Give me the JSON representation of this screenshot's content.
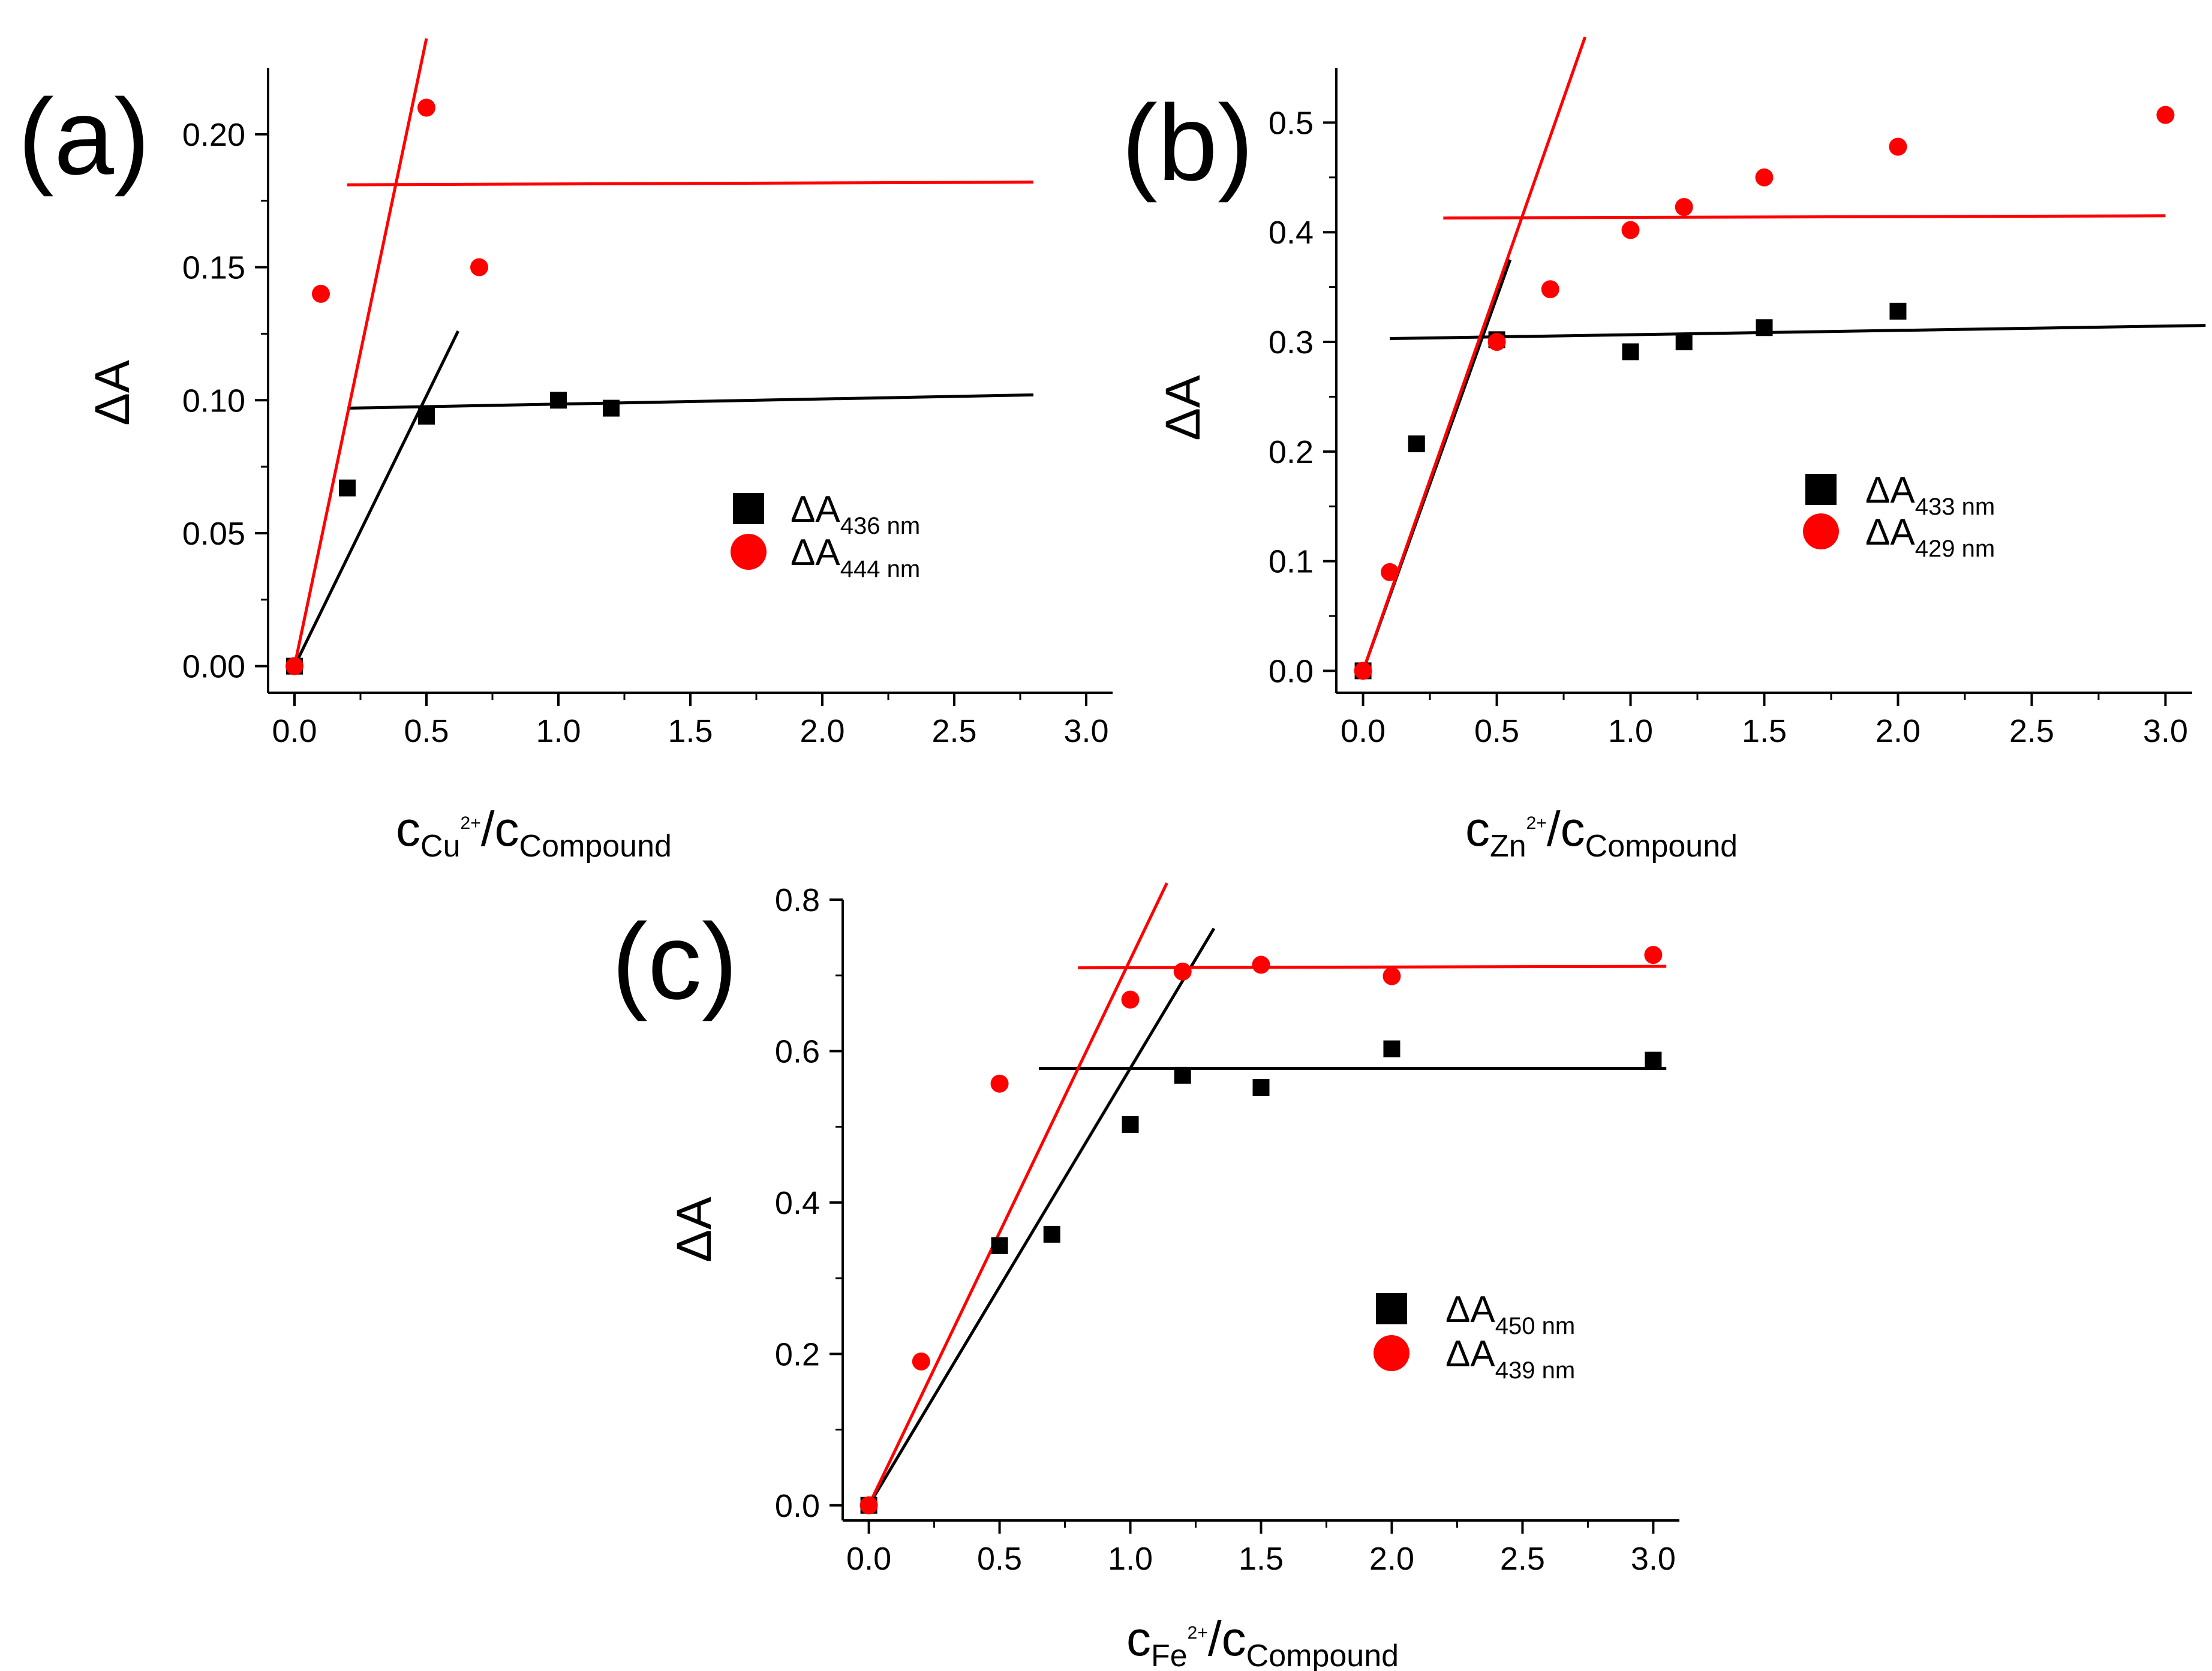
{
  "colors": {
    "series1": "#000000",
    "series2": "#ff0000",
    "axis": "#000000"
  },
  "chart_data": [
    {
      "panel": "(a)",
      "type": "scatter",
      "ylabel": "ΔA",
      "xlabel": {
        "main": "c",
        "ion": "Cu",
        "charge": "2+",
        "slash": "/",
        "main2": "c",
        "sub2": "Compound"
      },
      "xlim": [
        -0.1,
        3.1
      ],
      "ylim": [
        -0.01,
        0.225
      ],
      "xticks": [
        0.0,
        0.5,
        1.0,
        1.5,
        2.0,
        2.5,
        3.0
      ],
      "yticks": [
        0.0,
        0.05,
        0.1,
        0.15,
        0.2
      ],
      "xtick_labels": [
        "0.0",
        "0.5",
        "1.0",
        "1.5",
        "2.0",
        "2.5",
        "3.0"
      ],
      "ytick_labels": [
        "0.00",
        "0.05",
        "0.10",
        "0.15",
        "0.20"
      ],
      "legend": {
        "position": "right-middle"
      },
      "series": [
        {
          "name": "ΔA",
          "sub": "436 nm",
          "marker": "square",
          "color": "#000000",
          "x": [
            0,
            0.2,
            0.5,
            1.0,
            1.2
          ],
          "y": [
            0,
            0.067,
            0.094,
            0.1,
            0.097
          ]
        },
        {
          "name": "ΔA",
          "sub": "444 nm",
          "marker": "circle",
          "color": "#ff0000",
          "x": [
            0,
            0.1,
            0.5,
            0.7
          ],
          "y": [
            0,
            0.14,
            0.21,
            0.15
          ]
        }
      ],
      "fit_lines": [
        {
          "color": "#000000",
          "x": [
            0,
            0.62
          ],
          "y": [
            0,
            0.126
          ]
        },
        {
          "color": "#000000",
          "x": [
            0.2,
            2.8
          ],
          "y": [
            0.097,
            0.102
          ]
        },
        {
          "color": "#ff0000",
          "x": [
            0,
            0.5
          ],
          "y": [
            0,
            0.236
          ]
        },
        {
          "color": "#ff0000",
          "x": [
            0.2,
            2.8
          ],
          "y": [
            0.181,
            0.182
          ]
        }
      ]
    },
    {
      "panel": "(b)",
      "type": "scatter",
      "ylabel": "ΔA",
      "xlabel": {
        "main": "c",
        "ion": "Zn",
        "charge": "2+",
        "slash": "/",
        "main2": "c",
        "sub2": "Compound"
      },
      "xlim": [
        -0.1,
        3.1
      ],
      "ylim": [
        -0.02,
        0.55
      ],
      "xticks": [
        0.0,
        0.5,
        1.0,
        1.5,
        2.0,
        2.5,
        3.0
      ],
      "yticks": [
        0.0,
        0.1,
        0.2,
        0.3,
        0.4,
        0.5
      ],
      "xtick_labels": [
        "0.0",
        "0.5",
        "1.0",
        "1.5",
        "2.0",
        "2.5",
        "3.0"
      ],
      "ytick_labels": [
        "0.0",
        "0.1",
        "0.2",
        "0.3",
        "0.4",
        "0.5"
      ],
      "legend": {
        "position": "right-middle"
      },
      "series": [
        {
          "name": "ΔA",
          "sub": "433 nm",
          "marker": "square",
          "color": "#000000",
          "x": [
            0,
            0.2,
            0.5,
            1.0,
            1.2,
            1.5,
            2.0
          ],
          "y": [
            0,
            0.207,
            0.302,
            0.291,
            0.3,
            0.313,
            0.328
          ]
        },
        {
          "name": "ΔA",
          "sub": "429 nm",
          "marker": "circle",
          "color": "#ff0000",
          "x": [
            0,
            0.1,
            0.5,
            0.7,
            1.0,
            1.2,
            1.5,
            2.0,
            3.0
          ],
          "y": [
            0,
            0.09,
            0.3,
            0.348,
            0.402,
            0.423,
            0.45,
            0.478,
            0.507
          ]
        }
      ],
      "fit_lines": [
        {
          "color": "#000000",
          "x": [
            0,
            0.55
          ],
          "y": [
            0,
            0.375
          ]
        },
        {
          "color": "#000000",
          "x": [
            0.1,
            3.15
          ],
          "y": [
            0.303,
            0.315
          ]
        },
        {
          "color": "#ff0000",
          "x": [
            0,
            0.83
          ],
          "y": [
            0,
            0.578
          ]
        },
        {
          "color": "#ff0000",
          "x": [
            0.3,
            3.0
          ],
          "y": [
            0.413,
            0.415
          ]
        }
      ]
    },
    {
      "panel": "(c)",
      "type": "scatter",
      "ylabel": "ΔA",
      "xlabel": {
        "main": "c",
        "ion": "Fe",
        "charge": "2+",
        "slash": "/",
        "main2": "c",
        "sub2": "Compound"
      },
      "xlim": [
        -0.1,
        3.1
      ],
      "ylim": [
        -0.02,
        0.8
      ],
      "xticks": [
        0.0,
        0.5,
        1.0,
        1.5,
        2.0,
        2.5,
        3.0
      ],
      "yticks": [
        0.0,
        0.2,
        0.4,
        0.6,
        0.8
      ],
      "xtick_labels": [
        "0.0",
        "0.5",
        "1.0",
        "1.5",
        "2.0",
        "2.5",
        "3.0"
      ],
      "ytick_labels": [
        "0.0",
        "0.2",
        "0.4",
        "0.6",
        "0.8"
      ],
      "legend": {
        "position": "right-middle"
      },
      "series": [
        {
          "name": "ΔA",
          "sub": "450 nm",
          "marker": "square",
          "color": "#000000",
          "x": [
            0,
            0.5,
            0.7,
            1.0,
            1.2,
            1.5,
            2.0,
            3.0
          ],
          "y": [
            0,
            0.343,
            0.358,
            0.503,
            0.568,
            0.552,
            0.603,
            0.588
          ]
        },
        {
          "name": "ΔA",
          "sub": "439 nm",
          "marker": "circle",
          "color": "#ff0000",
          "x": [
            0,
            0.2,
            0.5,
            1.0,
            1.2,
            1.5,
            2.0,
            3.0
          ],
          "y": [
            0,
            0.19,
            0.557,
            0.668,
            0.705,
            0.714,
            0.699,
            0.727
          ]
        }
      ],
      "fit_lines": [
        {
          "color": "#000000",
          "x": [
            0,
            1.32
          ],
          "y": [
            0,
            0.762
          ]
        },
        {
          "color": "#000000",
          "x": [
            0.65,
            3.05
          ],
          "y": [
            0.577,
            0.577
          ]
        },
        {
          "color": "#ff0000",
          "x": [
            0,
            1.14
          ],
          "y": [
            0,
            0.822
          ]
        },
        {
          "color": "#ff0000",
          "x": [
            0.8,
            3.05
          ],
          "y": [
            0.71,
            0.712
          ]
        }
      ]
    }
  ]
}
